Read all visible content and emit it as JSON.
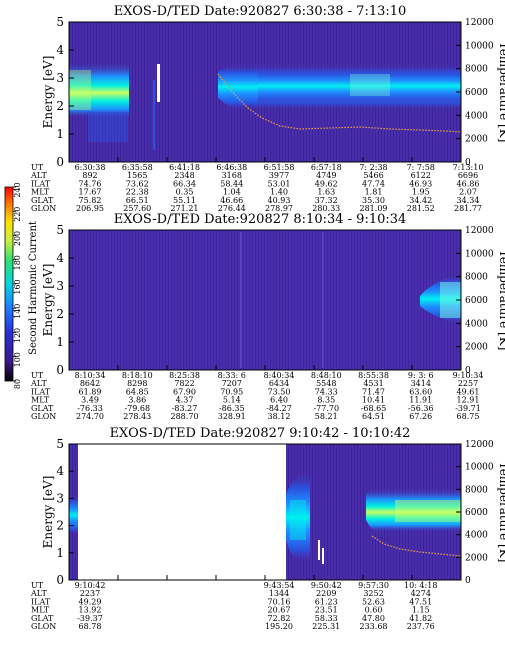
{
  "panels": [
    {
      "title": "EXOS-D/TED   Date:920827  6:30:38 - 7:13:10",
      "ylabel_left": "Energy [eV]",
      "ylabel_right": "Temperature [K]",
      "y_ticks_left": [
        "0",
        "1",
        "2",
        "3",
        "4",
        "5"
      ],
      "y_ticks_right": [
        "0",
        "2000",
        "4000",
        "6000",
        "8000",
        "10000",
        "12000"
      ],
      "x_ticks": [
        "6:30:38",
        "6:35:58",
        "6:41:18",
        "6:46:38",
        "6:51:58",
        "6:57:18",
        "7: 2:38",
        "7: 7:58",
        "7:13:10"
      ],
      "rows": [
        {
          "label": "UT",
          "values": [
            "6:30:38",
            "6:35:58",
            "6:41:18",
            "6:46:38",
            "6:51:58",
            "6:57:18",
            "7: 2:38",
            "7: 7:58",
            "7:13:10"
          ]
        },
        {
          "label": "ALT",
          "values": [
            "892",
            "1565",
            "2348",
            "3168",
            "3977",
            "4749",
            "5466",
            "6122",
            "6696"
          ]
        },
        {
          "label": "ILAT",
          "values": [
            "74.76",
            "73.62",
            "66.34",
            "58.44",
            "53.01",
            "49.62",
            "47.74",
            "46.93",
            "46.86"
          ]
        },
        {
          "label": "MLT",
          "values": [
            "17.67",
            "22.38",
            "0.35",
            "1.04",
            "1.40",
            "1.63",
            "1.81",
            "1.95",
            "2.07"
          ]
        },
        {
          "label": "GLAT",
          "values": [
            "75.82",
            "66.51",
            "55.11",
            "46.66",
            "40.93",
            "37.32",
            "35.30",
            "34.42",
            "34.34"
          ]
        },
        {
          "label": "GLON",
          "values": [
            "206.95",
            "257.60",
            "271.21",
            "276.44",
            "278.97",
            "280.33",
            "281.09",
            "281.52",
            "281.77"
          ]
        }
      ]
    },
    {
      "title": "EXOS-D/TED   Date:920827  8:10:34 - 9:10:34",
      "ylabel_left": "Energy [eV]",
      "ylabel_right": "Temperature [K]",
      "y_ticks_left": [
        "0",
        "1",
        "2",
        "3",
        "4",
        "5"
      ],
      "y_ticks_right": [
        "0",
        "2000",
        "4000",
        "6000",
        "8000",
        "10000",
        "12000"
      ],
      "x_ticks": [
        "8:10:34",
        "8:18:10",
        "8:25:38",
        "8:33: 6",
        "8:40:34",
        "8:48:10",
        "8:55:38",
        "9: 3: 6",
        "9:10:34"
      ],
      "rows": [
        {
          "label": "UT",
          "values": [
            "8:10:34",
            "8:18:10",
            "8:25:38",
            "8:33: 6",
            "8:40:34",
            "8:48:10",
            "8:55:38",
            "9: 3: 6",
            "9:10:34"
          ]
        },
        {
          "label": "ALT",
          "values": [
            "8642",
            "8298",
            "7822",
            "7207",
            "6434",
            "5548",
            "4531",
            "3414",
            "2257"
          ]
        },
        {
          "label": "ILAT",
          "values": [
            "61.89",
            "64.85",
            "67.90",
            "70.95",
            "73.50",
            "74.33",
            "71.47",
            "63.60",
            "49.61"
          ]
        },
        {
          "label": "MLT",
          "values": [
            "3.49",
            "3.86",
            "4.37",
            "5.14",
            "6.40",
            "8.35",
            "10.41",
            "11.91",
            "12.91"
          ]
        },
        {
          "label": "GLAT",
          "values": [
            "-76.33",
            "-79.68",
            "-83.27",
            "-86.35",
            "-84.27",
            "-77.70",
            "-68.65",
            "-56.36",
            "-39.71"
          ]
        },
        {
          "label": "GLON",
          "values": [
            "274.70",
            "278.43",
            "288.70",
            "328.91",
            "38.12",
            "58.21",
            "64.51",
            "67.26",
            "68.75"
          ]
        }
      ]
    },
    {
      "title": "EXOS-D/TED   Date:920827  9:10:42 - 10:10:42",
      "ylabel_left": "Energy [eV]",
      "ylabel_right": "Temperature [K]",
      "y_ticks_left": [
        "0",
        "1",
        "2",
        "3",
        "4",
        "5"
      ],
      "y_ticks_right": [
        "0",
        "2000",
        "4000",
        "6000",
        "8000",
        "10000",
        "12000"
      ],
      "x_ticks": [
        "9:10:42",
        "",
        "",
        "",
        "9:43:54",
        "9:50:42",
        "9:57:30",
        "10: 4:18",
        ""
      ],
      "rows": [
        {
          "label": "UT",
          "values": [
            "9:10:42",
            "",
            "",
            "",
            "9:43:54",
            "9:50:42",
            "9:57:30",
            "10: 4:18",
            ""
          ]
        },
        {
          "label": "ALT",
          "values": [
            "2237",
            "",
            "",
            "",
            "1344",
            "2209",
            "3252",
            "4274",
            ""
          ]
        },
        {
          "label": "ILAT",
          "values": [
            "49.29",
            "",
            "",
            "",
            "70.16",
            "61.23",
            "52.63",
            "47.51",
            ""
          ]
        },
        {
          "label": "MLT",
          "values": [
            "13.92",
            "",
            "",
            "",
            "20.67",
            "23.51",
            "0.60",
            "1.15",
            ""
          ]
        },
        {
          "label": "GLAT",
          "values": [
            "-39.37",
            "",
            "",
            "",
            "72.82",
            "58.33",
            "47.80",
            "41.82",
            ""
          ]
        },
        {
          "label": "GLON",
          "values": [
            "68.78",
            "",
            "",
            "",
            "195.20",
            "225.31",
            "233.68",
            "237.76",
            ""
          ]
        }
      ]
    }
  ],
  "colorbar": {
    "label": "Second Harmonic Current",
    "ticks": [
      "80",
      "100",
      "120",
      "140",
      "160",
      "180",
      "200",
      "220",
      "240"
    ]
  },
  "colors": {
    "background": "#4a2ea8",
    "band": "#1e90ff",
    "band_core": "#00f5f0",
    "band_peak": "#ccff66",
    "temperature_trace": "#f0a040"
  },
  "chart_data": [
    {
      "type": "heatmap",
      "title": "EXOS-D/TED   Date:920827  6:30:38 - 7:13:10",
      "xlabel": "UT",
      "ylabel": "Energy [eV]",
      "y2label": "Temperature [K]",
      "ylim": [
        0,
        5
      ],
      "y2lim": [
        0,
        12000
      ],
      "x_ticks": [
        "6:30:38",
        "6:35:58",
        "6:41:18",
        "6:46:38",
        "6:51:58",
        "6:57:18",
        "7: 2:38",
        "7: 7:58",
        "7:13:10"
      ],
      "series": [
        {
          "name": "Second Harmonic Current",
          "band_energy_ev": [
            {
              "time": "6:30:38",
              "center": 2.6,
              "width": 1.2
            },
            {
              "time": "6:35:58",
              "center": 2.5,
              "width": 1.0
            },
            {
              "time": "6:46:38",
              "center": 2.8,
              "width": 0.9
            },
            {
              "time": "6:57:18",
              "center": 2.7,
              "width": 1.2
            },
            {
              "time": "7:13:10",
              "center": 2.7,
              "width": 1.1
            }
          ]
        },
        {
          "name": "Temperature [K]",
          "points": [
            {
              "time": "6:46:38",
              "value": 6000
            },
            {
              "time": "6:51:58",
              "value": 3600
            },
            {
              "time": "6:57:18",
              "value": 2900
            },
            {
              "time": "7: 2:38",
              "value": 3000
            },
            {
              "time": "7: 7:58",
              "value": 2800
            },
            {
              "time": "7:13:10",
              "value": 2600
            }
          ]
        }
      ]
    },
    {
      "type": "heatmap",
      "title": "EXOS-D/TED   Date:920827  8:10:34 - 9:10:34",
      "xlabel": "UT",
      "ylabel": "Energy [eV]",
      "y2label": "Temperature [K]",
      "ylim": [
        0,
        5
      ],
      "y2lim": [
        0,
        12000
      ],
      "x_ticks": [
        "8:10:34",
        "8:18:10",
        "8:25:38",
        "8:33: 6",
        "8:40:34",
        "8:48:10",
        "8:55:38",
        "9: 3: 6",
        "9:10:34"
      ],
      "series": [
        {
          "name": "Second Harmonic Current",
          "band_energy_ev": [
            {
              "time": "9: 3: 6",
              "center": 2.9,
              "width": 1.0
            },
            {
              "time": "9:10:34",
              "center": 2.8,
              "width": 1.2
            }
          ]
        }
      ]
    },
    {
      "type": "heatmap",
      "title": "EXOS-D/TED   Date:920827  9:10:42 - 10:10:42",
      "xlabel": "UT",
      "ylabel": "Energy [eV]",
      "y2label": "Temperature [K]",
      "ylim": [
        0,
        5
      ],
      "y2lim": [
        0,
        12000
      ],
      "x_ticks": [
        "9:10:42",
        "9:43:54",
        "9:50:42",
        "9:57:30",
        "10: 4:18"
      ],
      "series": [
        {
          "name": "Second Harmonic Current",
          "band_energy_ev": [
            {
              "time": "9:43:54",
              "center": 2.2,
              "width": 1.6
            },
            {
              "time": "9:57:30",
              "center": 2.7,
              "width": 1.1
            },
            {
              "time": "10:10:42",
              "center": 2.7,
              "width": 0.9
            }
          ]
        },
        {
          "name": "Temperature [K]",
          "points": [
            {
              "time": "9:57:30",
              "value": 3300
            },
            {
              "time": "10: 4:18",
              "value": 2900
            },
            {
              "time": "10:10:42",
              "value": 2500
            }
          ]
        }
      ]
    }
  ]
}
